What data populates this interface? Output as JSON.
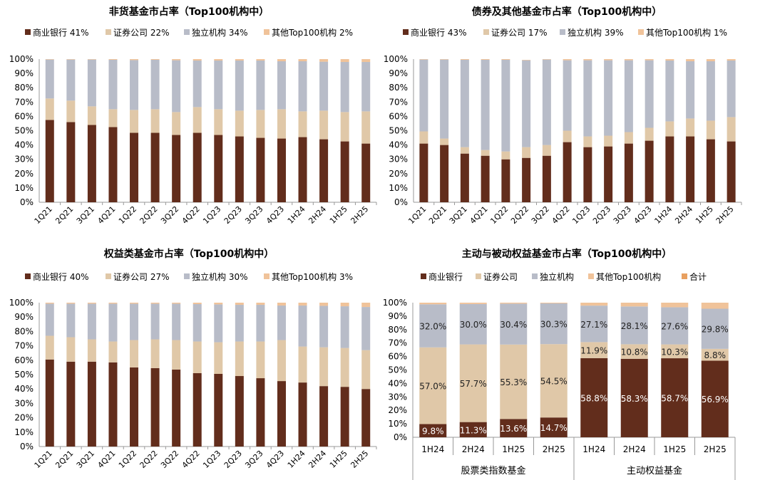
{
  "colors": {
    "bank": "#622d1c",
    "securities": "#e0c8a8",
    "independent": "#b8bcc8",
    "other": "#f0c39a",
    "total": "#e8a060"
  },
  "chart_data": [
    {
      "type": "bar",
      "stacked": true,
      "title": "非货基金市占率（Top100机构中）",
      "legend": [
        "商业银行 41%",
        "证券公司 22%",
        "独立机构 34%",
        "其他Top100机构 2%"
      ],
      "categories": [
        "1Q21",
        "2Q21",
        "3Q21",
        "4Q21",
        "1Q22",
        "2Q22",
        "3Q22",
        "4Q22",
        "1Q23",
        "2Q23",
        "3Q23",
        "4Q23",
        "1H24",
        "2H24",
        "1H25",
        "2H25"
      ],
      "yticks": [
        "0%",
        "10%",
        "20%",
        "30%",
        "40%",
        "50%",
        "60%",
        "70%",
        "80%",
        "90%",
        "100%"
      ],
      "ylim": [
        0,
        100
      ],
      "series": [
        {
          "name": "商业银行",
          "values": [
            57.5,
            56,
            54,
            52.5,
            48.5,
            48.5,
            47,
            48.5,
            47,
            46,
            45,
            44.5,
            45.5,
            44,
            42.5,
            41
          ]
        },
        {
          "name": "证券公司",
          "values": [
            15,
            15,
            13,
            12.5,
            16,
            16.5,
            16,
            18,
            18,
            18,
            19.5,
            20.5,
            18,
            20,
            20.5,
            22.5
          ]
        },
        {
          "name": "独立机构",
          "values": [
            27.2,
            28.7,
            32.7,
            34.5,
            34.8,
            34.5,
            36.2,
            32.5,
            34,
            35,
            34.5,
            33.5,
            35,
            34.2,
            35,
            34.5
          ]
        },
        {
          "name": "其他Top100机构",
          "values": [
            0.3,
            0.3,
            0.3,
            0.5,
            0.7,
            0.5,
            0.8,
            1,
            1,
            1,
            1,
            1.5,
            1.5,
            1.8,
            2,
            2
          ]
        }
      ]
    },
    {
      "type": "bar",
      "stacked": true,
      "title": "债券及其他基金市占率（Top100机构中）",
      "legend": [
        "商业银行 43%",
        "证券公司 17%",
        "独立机构 39%",
        "其他Top100机构 1%"
      ],
      "categories": [
        "1Q21",
        "2Q21",
        "3Q21",
        "4Q21",
        "1Q22",
        "2Q22",
        "3Q22",
        "4Q22",
        "1Q23",
        "2Q23",
        "3Q23",
        "4Q23",
        "1H24",
        "2H24",
        "1H25",
        "2H25"
      ],
      "yticks": [
        "0%",
        "10%",
        "20%",
        "30%",
        "40%",
        "50%",
        "60%",
        "70%",
        "80%",
        "90%",
        "100%"
      ],
      "ylim": [
        0,
        100
      ],
      "series": [
        {
          "name": "商业银行",
          "values": [
            41,
            40,
            34,
            32.5,
            30,
            31,
            32.5,
            42,
            38.5,
            39,
            41,
            43,
            46,
            46,
            44,
            42.5
          ]
        },
        {
          "name": "证券公司",
          "values": [
            8.5,
            4.5,
            4.5,
            4,
            5.5,
            7.5,
            7.5,
            8,
            7.5,
            7.5,
            8,
            9,
            10.5,
            12.5,
            13,
            17
          ]
        },
        {
          "name": "独立机构",
          "values": [
            50.2,
            55.2,
            61,
            63,
            64,
            60.7,
            59.7,
            49.2,
            53.2,
            52.7,
            50.2,
            47.2,
            42.5,
            40,
            41.5,
            39.5
          ]
        },
        {
          "name": "其他Top100机构",
          "values": [
            0.3,
            0.3,
            0.5,
            0.5,
            0.5,
            0.3,
            0.3,
            0.8,
            0.8,
            0.8,
            0.8,
            0.8,
            1,
            1.5,
            1.5,
            1
          ]
        }
      ]
    },
    {
      "type": "bar",
      "stacked": true,
      "title": "权益类基金市占率（Top100机构中）",
      "legend": [
        "商业银行 40%",
        "证券公司 27%",
        "独立机构 30%",
        "其他Top100机构 3%"
      ],
      "categories": [
        "1Q21",
        "2Q21",
        "3Q21",
        "4Q21",
        "1Q22",
        "2Q22",
        "3Q22",
        "4Q22",
        "1Q23",
        "2Q23",
        "3Q23",
        "4Q23",
        "1H24",
        "2H24",
        "1H25",
        "2H25"
      ],
      "yticks": [
        "0%",
        "10%",
        "20%",
        "30%",
        "40%",
        "50%",
        "60%",
        "70%",
        "80%",
        "90%",
        "100%"
      ],
      "ylim": [
        0,
        100
      ],
      "series": [
        {
          "name": "商业银行",
          "values": [
            60.5,
            59,
            59,
            58.5,
            55,
            54.5,
            53.5,
            51,
            50.5,
            49,
            47.5,
            45.5,
            44.5,
            42,
            41.5,
            40
          ]
        },
        {
          "name": "证券公司",
          "values": [
            16.5,
            17,
            15.5,
            14.5,
            19,
            20,
            20.5,
            22,
            22,
            24,
            25.5,
            28.5,
            25,
            27,
            27,
            27
          ]
        },
        {
          "name": "独立机构",
          "values": [
            22.3,
            23.3,
            24.8,
            26.3,
            25.3,
            24.8,
            25.3,
            26,
            26.3,
            25.5,
            25.5,
            24,
            28.5,
            28.8,
            29,
            30
          ]
        },
        {
          "name": "其他Top100机构",
          "values": [
            0.7,
            0.7,
            0.7,
            0.7,
            0.7,
            0.7,
            0.7,
            1,
            1.2,
            1.5,
            1.5,
            2,
            2,
            2.2,
            2.5,
            3
          ]
        }
      ]
    },
    {
      "type": "bar",
      "stacked": true,
      "title": "主动与被动权益基金市占率（Top100机构中）",
      "legend": [
        "商业银行",
        "证券公司",
        "独立机构",
        "其他Top100机构",
        "合计"
      ],
      "categories": [
        "1H24",
        "2H24",
        "1H25",
        "2H25",
        "1H24",
        "2H24",
        "1H25",
        "2H25"
      ],
      "groups": [
        "股票类指数基金",
        "主动权益基金"
      ],
      "yticks": [
        "0%",
        "10%",
        "20%",
        "30%",
        "40%",
        "50%",
        "60%",
        "70%",
        "80%",
        "90%",
        "100%"
      ],
      "ylim": [
        0,
        100
      ],
      "series": [
        {
          "name": "商业银行",
          "values": [
            9.8,
            11.3,
            13.6,
            14.7,
            58.8,
            58.3,
            58.7,
            56.9
          ],
          "labels": [
            "9.8%",
            "11.3%",
            "13.6%",
            "14.7%",
            "58.8%",
            "58.3%",
            "58.7%",
            "56.9%"
          ]
        },
        {
          "name": "证券公司",
          "values": [
            57.0,
            57.7,
            55.3,
            54.5,
            11.9,
            10.8,
            10.3,
            8.8
          ],
          "labels": [
            "57.0%",
            "57.7%",
            "55.3%",
            "54.5%",
            "11.9%",
            "10.8%",
            "10.3%",
            "8.8%"
          ]
        },
        {
          "name": "独立机构",
          "values": [
            32.0,
            30.0,
            30.4,
            30.3,
            27.1,
            28.1,
            27.6,
            29.8
          ],
          "labels": [
            "32.0%",
            "30.0%",
            "30.4%",
            "30.3%",
            "27.1%",
            "28.1%",
            "27.6%",
            "29.8%"
          ]
        },
        {
          "name": "其他Top100机构",
          "values": [
            1.2,
            1.0,
            0.7,
            0.5,
            2.2,
            2.8,
            3.4,
            4.5
          ]
        }
      ]
    }
  ]
}
